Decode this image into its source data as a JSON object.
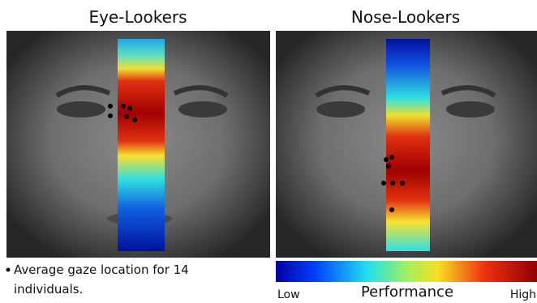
{
  "panels": [
    {
      "title": "Eye-Lookers"
    },
    {
      "title": "Nose-Lookers"
    }
  ],
  "note": {
    "lines": [
      "Average gaze location for 14",
      "individuals."
    ]
  },
  "colorbar": {
    "low": "Low",
    "label": "Performance",
    "high": "High"
  }
}
